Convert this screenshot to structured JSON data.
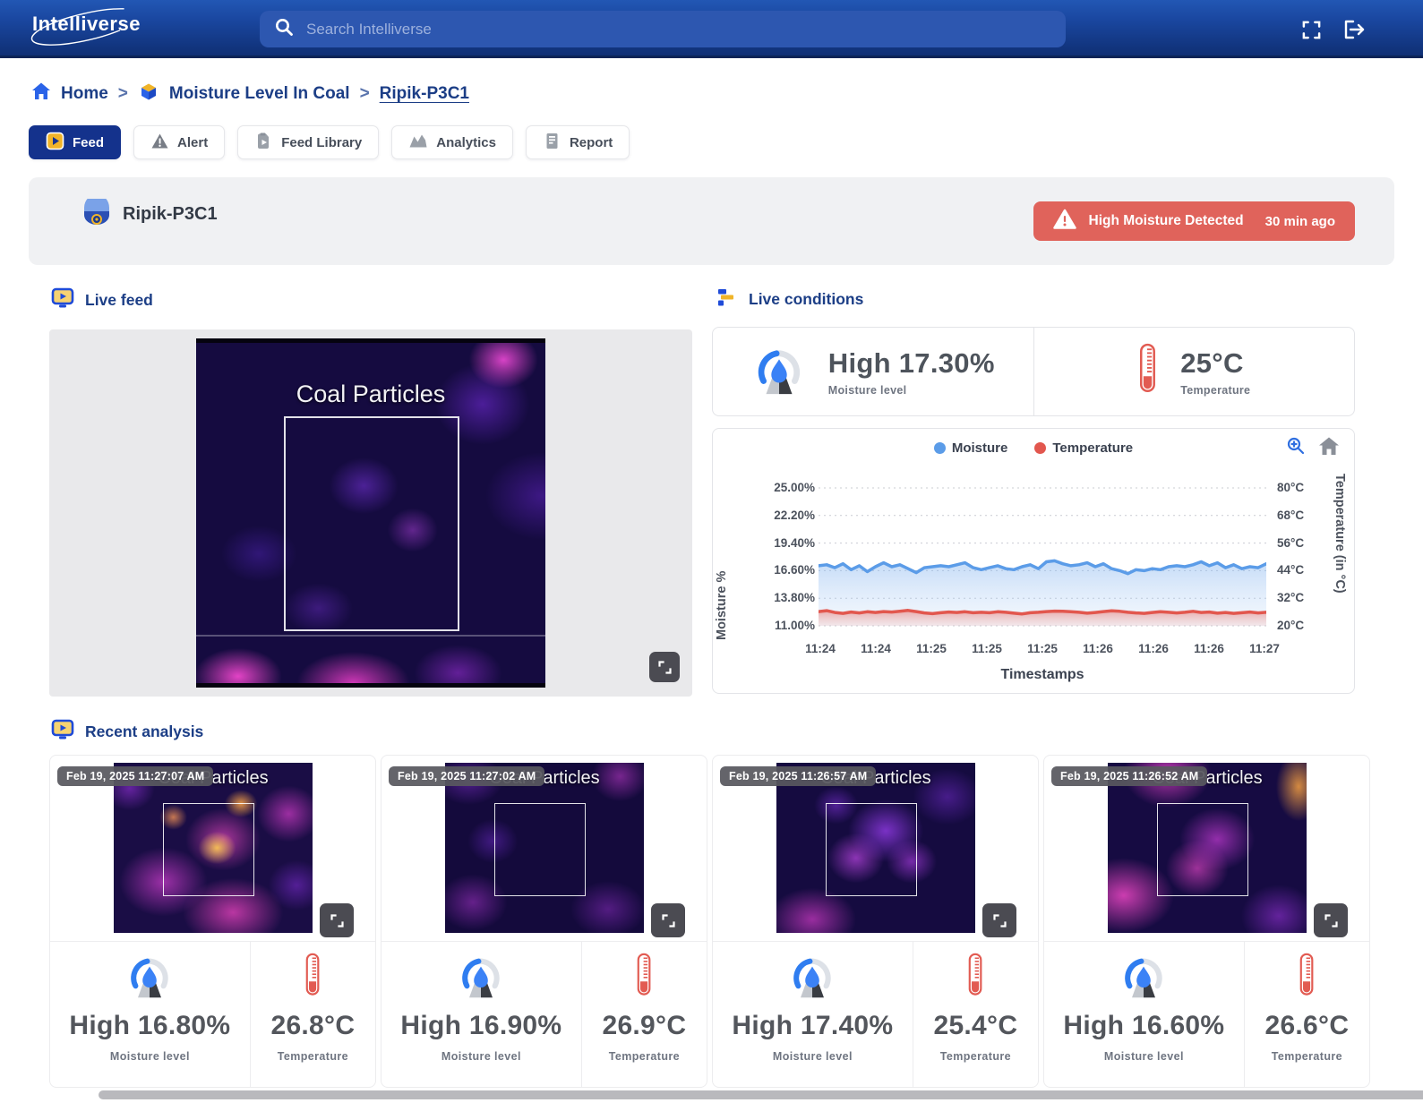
{
  "navbar": {
    "brand": "Intelliverse",
    "search_placeholder": "Search Intelliverse"
  },
  "breadcrumb": {
    "separator": ">",
    "items": [
      {
        "label": "Home"
      },
      {
        "label": "Moisture Level In Coal"
      },
      {
        "label": "Ripik-P3C1"
      }
    ]
  },
  "tabs": [
    {
      "label": "Feed",
      "active": true
    },
    {
      "label": "Alert",
      "active": false
    },
    {
      "label": "Feed Library",
      "active": false
    },
    {
      "label": "Analytics",
      "active": false
    },
    {
      "label": "Report",
      "active": false
    }
  ],
  "camera": {
    "name": "Ripik-P3C1",
    "alert_label": "High Moisture Detected",
    "alert_time": "30 min ago"
  },
  "live_feed": {
    "title": "Live feed",
    "image_label": "Coal Particles"
  },
  "live_conditions": {
    "title": "Live conditions",
    "moisture": {
      "value": "High 17.30%",
      "label": "Moisture level"
    },
    "temperature": {
      "value": "25°C",
      "label": "Temperature"
    }
  },
  "chart_data": {
    "type": "line",
    "xlabel": "Timestamps",
    "ylabel_left": "Moisture %",
    "ylabel_right": "Temperature (in °C)",
    "ylim_left": [
      11,
      25
    ],
    "ylim_right": [
      20,
      80
    ],
    "grid": "horizontal-dotted",
    "legend_position": "top-center",
    "y_left_ticks": [
      "25.00%",
      "22.20%",
      "19.40%",
      "16.60%",
      "13.80%",
      "11.00%"
    ],
    "y_right_ticks": [
      "80°C",
      "68°C",
      "56°C",
      "44°C",
      "32°C",
      "20°C"
    ],
    "x_ticks": [
      "11:24",
      "11:24",
      "11:25",
      "11:25",
      "11:25",
      "11:26",
      "11:26",
      "11:26",
      "11:27"
    ],
    "legend": [
      {
        "name": "Moisture",
        "color": "#5b9ce8"
      },
      {
        "name": "Temperature",
        "color": "#e2574e"
      }
    ],
    "series": [
      {
        "name": "Moisture",
        "axis": "left",
        "color": "#5b9ce8",
        "values": [
          17.1,
          17.2,
          16.9,
          17.3,
          16.7,
          17.1,
          16.5,
          17.0,
          17.4,
          17.0,
          17.2,
          16.8,
          16.4,
          16.9,
          17.0,
          17.1,
          17.0,
          17.2,
          17.4,
          16.9,
          16.7,
          16.9,
          17.1,
          16.8,
          16.7,
          17.0,
          17.2,
          16.8,
          17.5,
          17.6,
          17.3,
          17.1,
          17.2,
          17.4,
          17.0,
          17.3,
          16.8,
          16.6,
          16.3,
          16.7,
          16.6,
          16.8,
          16.7,
          17.0,
          17.1,
          17.0,
          17.2,
          17.5,
          17.1,
          17.4,
          16.9,
          17.2,
          16.8,
          17.0,
          16.9,
          17.3
        ]
      },
      {
        "name": "Temperature",
        "axis": "right",
        "color": "#e2574e",
        "values": [
          26.2,
          26.6,
          25.8,
          25.4,
          26.0,
          25.6,
          26.1,
          25.8,
          26.2,
          26.0,
          26.3,
          26.7,
          26.2,
          25.6,
          25.3,
          25.7,
          26.0,
          25.8,
          26.1,
          25.7,
          25.9,
          25.7,
          26.1,
          25.9,
          25.5,
          25.2,
          25.7,
          25.9,
          26.2,
          26.4,
          26.3,
          26.1,
          25.9,
          25.5,
          25.8,
          26.2,
          26.5,
          26.3,
          25.9,
          25.6,
          25.4,
          25.8,
          26.1,
          25.9,
          25.6,
          25.9,
          26.3,
          25.8,
          26.0,
          25.5,
          25.8,
          25.4,
          25.7,
          26.0,
          25.6,
          25.9
        ]
      }
    ]
  },
  "recent_analysis": {
    "title": "Recent analysis",
    "cards": [
      {
        "timestamp": "Feb 19, 2025 11:27:07 AM",
        "image_label": "Coal Particles",
        "moisture_value": "High 16.80%",
        "moisture_label": "Moisture level",
        "temperature_value": "26.8°C",
        "temperature_label": "Temperature"
      },
      {
        "timestamp": "Feb 19, 2025 11:27:02 AM",
        "image_label": "Coal Particles",
        "moisture_value": "High 16.90%",
        "moisture_label": "Moisture level",
        "temperature_value": "26.9°C",
        "temperature_label": "Temperature"
      },
      {
        "timestamp": "Feb 19, 2025 11:26:57 AM",
        "image_label": "Coal Particles",
        "moisture_value": "High 17.40%",
        "moisture_label": "Moisture level",
        "temperature_value": "25.4°C",
        "temperature_label": "Temperature"
      },
      {
        "timestamp": "Feb 19, 2025 11:26:52 AM",
        "image_label": "Coal Particles",
        "moisture_value": "High 16.60%",
        "moisture_label": "Moisture level",
        "temperature_value": "26.6°C",
        "temperature_label": "Temperature"
      }
    ]
  },
  "icons": {
    "navbar": [
      "search-icon",
      "fullscreen-icon",
      "logout-icon"
    ],
    "breadcrumb": [
      "home-icon",
      "cube-icon"
    ],
    "tabs": [
      "play-icon",
      "warning-triangle-icon",
      "feed-library-icon",
      "analytics-icon",
      "report-icon"
    ],
    "panels": [
      "camera-icon",
      "monitor-play-icon",
      "bars-icon",
      "moisture-sensor-icon",
      "thermometer-icon",
      "expand-icon",
      "zoom-in-icon",
      "chart-home-icon"
    ]
  },
  "colors": {
    "navbar_top": "#2257b4",
    "navbar_bottom": "#0f2f74",
    "active_tab": "#14328c",
    "link_navy": "#1c3e86",
    "accent_yellow": "#f0b429",
    "alert_red": "#e0635b",
    "moisture_blue": "#5b9ce8",
    "temperature_red": "#e2574e",
    "panel_gray": "#f0f1f3"
  }
}
